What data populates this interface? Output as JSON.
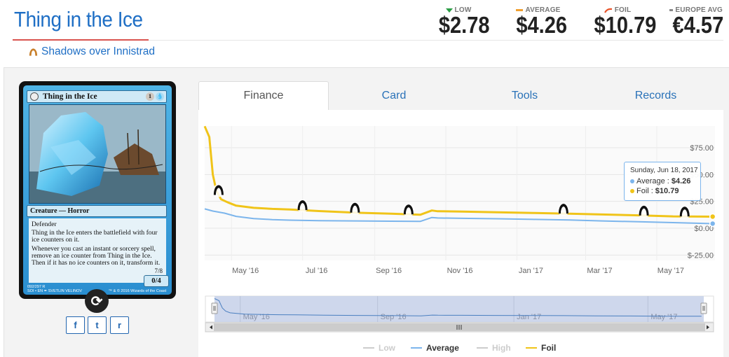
{
  "header": {
    "card_title": "Thing in the Ice",
    "set_name": "Shadows over Innistrad",
    "set_icon": "innistrad-set-icon"
  },
  "prices": [
    {
      "label": "LOW",
      "value": "$2.78",
      "marker": "down-triangle-icon",
      "color": "#2a9d44"
    },
    {
      "label": "AVERAGE",
      "value": "$4.26",
      "marker": "bar-icon",
      "color": "#f0a030"
    },
    {
      "label": "FOIL",
      "value": "$10.79",
      "marker": "foil-swoosh-icon",
      "color": "#e8542a"
    },
    {
      "label": "EUROPE AVG",
      "value": "€4.57",
      "marker": "bar-icon",
      "color": "#888888"
    }
  ],
  "card": {
    "name": "Thing in the Ice",
    "mana_cost": [
      "1",
      "U"
    ],
    "type_line": "Creature — Horror",
    "rules_text": [
      "Defender",
      "Thing in the Ice enters the battlefield with four ice counters on it.",
      "Whenever you cast an instant or sorcery spell, remove an ice counter from Thing in the Ice. Then if it has no ice counters on it, transform it."
    ],
    "transform_hint": "7/8",
    "power_toughness": "0/4",
    "footer_line1": "092/297 R",
    "footer_line2": "SOI • EN ✒ SVETLIN VELINOV",
    "copyright": "™ & © 2016 Wizards of the Coast",
    "flip_icon": "rotate-icon"
  },
  "share": [
    {
      "label": "f",
      "icon": "facebook-icon"
    },
    {
      "label": "t",
      "icon": "twitter-icon"
    },
    {
      "label": "r",
      "icon": "reddit-icon"
    }
  ],
  "tabs": [
    {
      "label": "Finance",
      "active": true
    },
    {
      "label": "Card",
      "active": false
    },
    {
      "label": "Tools",
      "active": false
    },
    {
      "label": "Records",
      "active": false
    }
  ],
  "chart_data": {
    "type": "line",
    "title": "",
    "xlabel": "",
    "ylabel": "",
    "x_ticks": [
      "May '16",
      "Jul '16",
      "Sep '16",
      "Nov '16",
      "Jan '17",
      "Mar '17",
      "May '17"
    ],
    "y_ticks": [
      "$75.00",
      "$50.00",
      "$25.00",
      "$0.00",
      "$-25.00"
    ],
    "ylim": [
      -25,
      100
    ],
    "grid": true,
    "series": [
      {
        "name": "Foil",
        "color": "#f0c419",
        "x": [
          "2016-04-08",
          "2016-04-12",
          "2016-04-15",
          "2016-04-18",
          "2016-04-22",
          "2016-04-28",
          "2016-05-05",
          "2016-05-20",
          "2016-06-05",
          "2016-06-20",
          "2016-07-15",
          "2016-08-15",
          "2016-09-15",
          "2016-10-10",
          "2016-10-20",
          "2016-10-25",
          "2016-11-15",
          "2016-12-15",
          "2017-01-15",
          "2017-02-15",
          "2017-03-15",
          "2017-04-15",
          "2017-05-15",
          "2017-06-18"
        ],
        "values": [
          95,
          85,
          50,
          35,
          27,
          24,
          21,
          19,
          18,
          17.5,
          16,
          14.5,
          13.5,
          12.5,
          16.5,
          15.8,
          15.5,
          14.8,
          14.2,
          13.5,
          12.8,
          12,
          11,
          10.79
        ]
      },
      {
        "name": "Average",
        "color": "#7cb5ec",
        "x": [
          "2016-04-08",
          "2016-04-15",
          "2016-04-25",
          "2016-05-05",
          "2016-05-20",
          "2016-06-05",
          "2016-06-20",
          "2016-07-15",
          "2016-08-15",
          "2016-09-15",
          "2016-10-10",
          "2016-10-20",
          "2016-10-25",
          "2016-11-15",
          "2016-12-15",
          "2017-01-15",
          "2017-02-15",
          "2017-03-15",
          "2017-04-15",
          "2017-05-15",
          "2017-06-18"
        ],
        "values": [
          18,
          16,
          14,
          11,
          9,
          8,
          7.5,
          7,
          6.8,
          6.5,
          6.3,
          10,
          9.5,
          9.2,
          8.8,
          8.2,
          7.6,
          6.8,
          6,
          5.2,
          4.26
        ]
      }
    ],
    "set_markers": [
      {
        "date": "2016-04-20",
        "icon": "shadows-over-innistrad-icon"
      },
      {
        "date": "2016-07-01",
        "icon": "eldritch-moon-icon"
      },
      {
        "date": "2016-08-15",
        "icon": "conspiracy-icon"
      },
      {
        "date": "2016-09-30",
        "icon": "kaladesh-icon"
      },
      {
        "date": "2017-02-10",
        "icon": "aether-revolt-icon"
      },
      {
        "date": "2017-04-20",
        "icon": "amonkhet-icon"
      },
      {
        "date": "2017-05-25",
        "icon": "archenemy-icon"
      }
    ],
    "navigator_ticks": [
      "May '16",
      "Sep '16",
      "Jan '17",
      "May '17"
    ],
    "tooltip": {
      "date": "Sunday, Jun 18, 2017",
      "rows": [
        {
          "label": "Average",
          "value": "$4.26",
          "color": "#7cb5ec"
        },
        {
          "label": "Foil",
          "value": "$10.79",
          "color": "#f0c419"
        }
      ]
    },
    "legend": [
      {
        "label": "Low",
        "color": "#cccccc",
        "enabled": false
      },
      {
        "label": "Average",
        "color": "#7cb5ec",
        "enabled": true
      },
      {
        "label": "High",
        "color": "#cccccc",
        "enabled": false
      },
      {
        "label": "Foil",
        "color": "#f0c419",
        "enabled": true
      }
    ],
    "legend_position": "bottom-center"
  }
}
